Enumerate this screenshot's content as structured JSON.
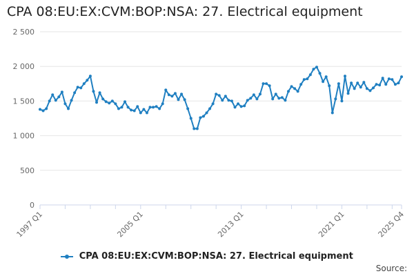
{
  "title": "CPA 08:EU:EX:CVM:BOP:NSA: 27. Electrical equipment",
  "source_label": "Source:",
  "colors": {
    "series": "#1f7fc1",
    "grid": "#e6e6e6",
    "axis": "#ccd6eb",
    "tick_text": "#666666"
  },
  "chart_data": {
    "type": "line",
    "title": "CPA 08:EU:EX:CVM:BOP:NSA: 27. Electrical equipment",
    "xlabel": "",
    "ylabel": "",
    "ylim": [
      0,
      2500
    ],
    "yticks": [
      0,
      500,
      1000,
      1500,
      2000,
      2500
    ],
    "ytick_labels": [
      "0",
      "500",
      "1 000",
      "1 500",
      "2 000",
      "2 500"
    ],
    "xtick_labels": [
      "1997 Q1",
      "2005 Q1",
      "2013 Q1",
      "2021 Q1",
      "2025 Q4"
    ],
    "xtick_index": [
      0,
      32,
      64,
      96,
      115
    ],
    "grid": true,
    "legend": "bottom-center",
    "x": [
      "1997 Q1",
      "1997 Q2",
      "1997 Q3",
      "1997 Q4",
      "1998 Q1",
      "1998 Q2",
      "1998 Q3",
      "1998 Q4",
      "1999 Q1",
      "1999 Q2",
      "1999 Q3",
      "1999 Q4",
      "2000 Q1",
      "2000 Q2",
      "2000 Q3",
      "2000 Q4",
      "2001 Q1",
      "2001 Q2",
      "2001 Q3",
      "2001 Q4",
      "2002 Q1",
      "2002 Q2",
      "2002 Q3",
      "2002 Q4",
      "2003 Q1",
      "2003 Q2",
      "2003 Q3",
      "2003 Q4",
      "2004 Q1",
      "2004 Q2",
      "2004 Q3",
      "2004 Q4",
      "2005 Q1",
      "2005 Q2",
      "2005 Q3",
      "2005 Q4",
      "2006 Q1",
      "2006 Q2",
      "2006 Q3",
      "2006 Q4",
      "2007 Q1",
      "2007 Q2",
      "2007 Q3",
      "2007 Q4",
      "2008 Q1",
      "2008 Q2",
      "2008 Q3",
      "2008 Q4",
      "2009 Q1",
      "2009 Q2",
      "2009 Q3",
      "2009 Q4",
      "2010 Q1",
      "2010 Q2",
      "2010 Q3",
      "2010 Q4",
      "2011 Q1",
      "2011 Q2",
      "2011 Q3",
      "2011 Q4",
      "2012 Q1",
      "2012 Q2",
      "2012 Q3",
      "2012 Q4",
      "2013 Q1",
      "2013 Q2",
      "2013 Q3",
      "2013 Q4",
      "2014 Q1",
      "2014 Q2",
      "2014 Q3",
      "2014 Q4",
      "2015 Q1",
      "2015 Q2",
      "2015 Q3",
      "2015 Q4",
      "2016 Q1",
      "2016 Q2",
      "2016 Q3",
      "2016 Q4",
      "2017 Q1",
      "2017 Q2",
      "2017 Q3",
      "2017 Q4",
      "2018 Q1",
      "2018 Q2",
      "2018 Q3",
      "2018 Q4",
      "2019 Q1",
      "2019 Q2",
      "2019 Q3",
      "2019 Q4",
      "2020 Q1",
      "2020 Q2",
      "2020 Q3",
      "2020 Q4",
      "2021 Q1",
      "2021 Q2",
      "2021 Q3",
      "2021 Q4",
      "2022 Q1",
      "2022 Q2",
      "2022 Q3",
      "2022 Q4",
      "2023 Q1",
      "2023 Q2",
      "2023 Q3",
      "2023 Q4",
      "2024 Q1",
      "2024 Q2",
      "2024 Q3",
      "2024 Q4",
      "2025 Q1",
      "2025 Q2",
      "2025 Q3",
      "2025 Q4"
    ],
    "series": [
      {
        "name": "CPA 08:EU:EX:CVM:BOP:NSA: 27. Electrical equipment",
        "values": [
          1380,
          1360,
          1390,
          1500,
          1590,
          1510,
          1560,
          1630,
          1460,
          1390,
          1510,
          1620,
          1700,
          1690,
          1750,
          1800,
          1860,
          1640,
          1480,
          1620,
          1530,
          1490,
          1470,
          1500,
          1460,
          1390,
          1410,
          1490,
          1410,
          1370,
          1360,
          1420,
          1330,
          1380,
          1330,
          1410,
          1410,
          1420,
          1390,
          1460,
          1660,
          1590,
          1570,
          1610,
          1520,
          1600,
          1520,
          1390,
          1250,
          1100,
          1100,
          1260,
          1280,
          1330,
          1390,
          1460,
          1600,
          1580,
          1510,
          1570,
          1510,
          1500,
          1410,
          1460,
          1420,
          1430,
          1510,
          1540,
          1590,
          1530,
          1600,
          1750,
          1750,
          1720,
          1530,
          1600,
          1540,
          1550,
          1510,
          1640,
          1710,
          1680,
          1640,
          1740,
          1810,
          1820,
          1880,
          1960,
          1990,
          1900,
          1780,
          1850,
          1720,
          1330,
          1530,
          1750,
          1500,
          1860,
          1610,
          1760,
          1680,
          1760,
          1700,
          1770,
          1680,
          1650,
          1690,
          1740,
          1730,
          1830,
          1740,
          1820,
          1810,
          1740,
          1760,
          1850
        ]
      }
    ]
  }
}
